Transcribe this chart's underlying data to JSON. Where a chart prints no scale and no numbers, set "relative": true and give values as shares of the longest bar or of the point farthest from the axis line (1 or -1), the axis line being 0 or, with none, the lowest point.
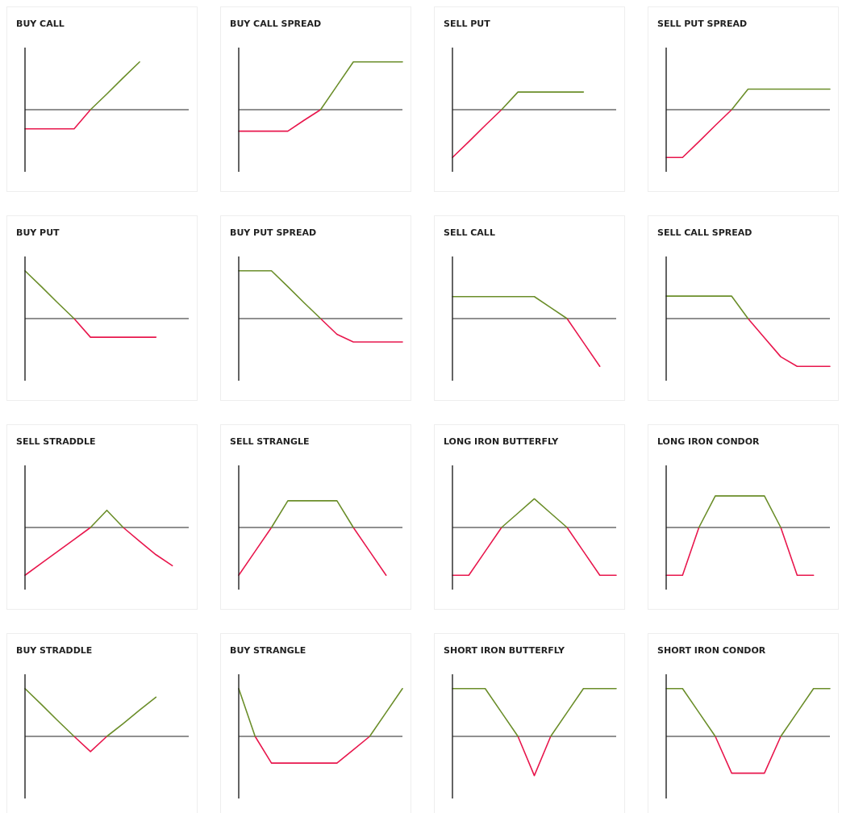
{
  "chart_data": [
    {
      "type": "line",
      "title": "BUY CALL",
      "relative": true,
      "categories": [
        null,
        null,
        null,
        null,
        null,
        null,
        null,
        null,
        null,
        null,
        null
      ],
      "series": [
        {
          "color": "#e8174d",
          "values": [
            -0.4,
            -0.4,
            -0.4,
            -0.4,
            0,
            null,
            null,
            null,
            null,
            null,
            null
          ]
        },
        {
          "color": "#6b8e2a",
          "values": [
            null,
            null,
            null,
            null,
            0,
            0.33,
            0.67,
            1,
            null,
            null,
            null
          ]
        }
      ]
    },
    {
      "type": "line",
      "title": "BUY CALL SPREAD",
      "relative": true,
      "categories": [
        null,
        null,
        null,
        null,
        null,
        null,
        null,
        null,
        null,
        null,
        null
      ],
      "series": [
        {
          "color": "#e8174d",
          "values": [
            -0.45,
            -0.45,
            -0.45,
            -0.45,
            -0.22,
            0,
            null,
            null,
            null,
            null,
            null
          ]
        },
        {
          "color": "#6b8e2a",
          "values": [
            null,
            null,
            null,
            null,
            null,
            0,
            0.5,
            1,
            1,
            1,
            1
          ]
        }
      ]
    },
    {
      "type": "line",
      "title": "SELL PUT",
      "relative": true,
      "categories": [
        null,
        null,
        null,
        null,
        null,
        null,
        null,
        null,
        null,
        null,
        null
      ],
      "series": [
        {
          "color": "#e8174d",
          "values": [
            -1,
            -0.67,
            -0.33,
            0,
            null,
            null,
            null,
            null,
            null,
            null,
            null
          ]
        },
        {
          "color": "#6b8e2a",
          "values": [
            null,
            null,
            null,
            0,
            0.37,
            0.37,
            0.37,
            0.37,
            0.37,
            null,
            null
          ]
        }
      ]
    },
    {
      "type": "line",
      "title": "SELL PUT SPREAD",
      "relative": true,
      "categories": [
        null,
        null,
        null,
        null,
        null,
        null,
        null,
        null,
        null,
        null,
        null
      ],
      "series": [
        {
          "color": "#e8174d",
          "values": [
            -1,
            -1,
            -0.67,
            -0.33,
            0,
            null,
            null,
            null,
            null,
            null,
            null
          ]
        },
        {
          "color": "#6b8e2a",
          "values": [
            null,
            null,
            null,
            null,
            0,
            0.43,
            0.43,
            0.43,
            0.43,
            0.43,
            0.43
          ]
        }
      ]
    },
    {
      "type": "line",
      "title": "BUY PUT",
      "relative": true,
      "categories": [
        null,
        null,
        null,
        null,
        null,
        null,
        null,
        null,
        null,
        null,
        null
      ],
      "series": [
        {
          "color": "#e8174d",
          "values": [
            null,
            null,
            null,
            0,
            -0.39,
            -0.39,
            -0.39,
            -0.39,
            -0.39,
            null,
            null
          ]
        },
        {
          "color": "#6b8e2a",
          "values": [
            1,
            0.67,
            0.33,
            0,
            null,
            null,
            null,
            null,
            null,
            null,
            null
          ]
        }
      ]
    },
    {
      "type": "line",
      "title": "BUY PUT SPREAD",
      "relative": true,
      "categories": [
        null,
        null,
        null,
        null,
        null,
        null,
        null,
        null,
        null,
        null,
        null
      ],
      "series": [
        {
          "color": "#e8174d",
          "values": [
            null,
            null,
            null,
            null,
            null,
            0,
            -0.33,
            -0.49,
            -0.49,
            -0.49,
            -0.49
          ]
        },
        {
          "color": "#6b8e2a",
          "values": [
            1,
            1,
            1,
            0.67,
            0.33,
            0,
            null,
            null,
            null,
            null,
            null
          ]
        }
      ]
    },
    {
      "type": "line",
      "title": "SELL CALL",
      "relative": true,
      "categories": [
        null,
        null,
        null,
        null,
        null,
        null,
        null,
        null,
        null,
        null,
        null
      ],
      "series": [
        {
          "color": "#e8174d",
          "values": [
            null,
            null,
            null,
            null,
            null,
            null,
            null,
            0,
            -0.5,
            -1,
            null
          ]
        },
        {
          "color": "#6b8e2a",
          "values": [
            0.46,
            0.46,
            0.46,
            0.46,
            0.46,
            0.46,
            0.23,
            0,
            null,
            null,
            null
          ]
        }
      ]
    },
    {
      "type": "line",
      "title": "SELL CALL SPREAD",
      "relative": true,
      "categories": [
        null,
        null,
        null,
        null,
        null,
        null,
        null,
        null,
        null,
        null,
        null
      ],
      "series": [
        {
          "color": "#e8174d",
          "values": [
            null,
            null,
            null,
            null,
            null,
            0,
            -0.4,
            -0.8,
            -1,
            -1,
            -1
          ]
        },
        {
          "color": "#6b8e2a",
          "values": [
            0.47,
            0.47,
            0.47,
            0.47,
            0.47,
            0,
            null,
            null,
            null,
            null,
            null
          ]
        }
      ]
    },
    {
      "type": "line",
      "title": "SELL STRADDLE",
      "relative": true,
      "categories": [
        null,
        null,
        null,
        null,
        null,
        null,
        null,
        null,
        null,
        null,
        null
      ],
      "series": [
        {
          "color": "#e8174d",
          "values": [
            -1,
            -0.75,
            -0.5,
            -0.25,
            0,
            null,
            0,
            -0.29,
            -0.57,
            -0.8,
            null
          ]
        },
        {
          "color": "#6b8e2a",
          "values": [
            null,
            null,
            null,
            null,
            0,
            0.36,
            0,
            null,
            null,
            null,
            null
          ]
        }
      ]
    },
    {
      "type": "line",
      "title": "SELL STRANGLE",
      "relative": true,
      "categories": [
        null,
        null,
        null,
        null,
        null,
        null,
        null,
        null,
        null,
        null,
        null
      ],
      "series": [
        {
          "color": "#e8174d",
          "values": [
            -1,
            -0.5,
            0,
            null,
            null,
            null,
            null,
            0,
            -0.5,
            -1,
            null
          ]
        },
        {
          "color": "#6b8e2a",
          "values": [
            null,
            null,
            0,
            0.56,
            0.56,
            0.56,
            0.56,
            0,
            null,
            null,
            null
          ]
        }
      ]
    },
    {
      "type": "line",
      "title": "LONG IRON BUTTERFLY",
      "relative": true,
      "categories": [
        null,
        null,
        null,
        null,
        null,
        null,
        null,
        null,
        null,
        null,
        null
      ],
      "series": [
        {
          "color": "#e8174d",
          "values": [
            -1,
            -1,
            -0.5,
            0,
            null,
            null,
            null,
            0,
            -0.5,
            -1,
            -1
          ]
        },
        {
          "color": "#6b8e2a",
          "values": [
            null,
            null,
            null,
            0,
            0.3,
            0.6,
            0.3,
            0,
            null,
            null,
            null
          ]
        }
      ]
    },
    {
      "type": "line",
      "title": "LONG IRON CONDOR",
      "relative": true,
      "categories": [
        null,
        null,
        null,
        null,
        null,
        null,
        null,
        null,
        null,
        null,
        null
      ],
      "series": [
        {
          "color": "#e8174d",
          "values": [
            -1,
            -1,
            0,
            null,
            null,
            null,
            null,
            0,
            -1,
            -1,
            null
          ]
        },
        {
          "color": "#6b8e2a",
          "values": [
            null,
            null,
            0,
            0.66,
            0.66,
            0.66,
            0.66,
            0,
            null,
            null,
            null
          ]
        }
      ]
    },
    {
      "type": "line",
      "title": "BUY STRADDLE",
      "relative": true,
      "categories": [
        null,
        null,
        null,
        null,
        null,
        null,
        null,
        null,
        null,
        null,
        null
      ],
      "series": [
        {
          "color": "#e8174d",
          "values": [
            null,
            null,
            null,
            0,
            -0.32,
            0,
            null,
            null,
            null,
            null,
            null
          ]
        },
        {
          "color": "#6b8e2a",
          "values": [
            1,
            0.67,
            0.33,
            0,
            null,
            0,
            0.27,
            0.55,
            0.82,
            null,
            null
          ]
        }
      ]
    },
    {
      "type": "line",
      "title": "BUY STRANGLE",
      "relative": true,
      "categories": [
        null,
        null,
        null,
        null,
        null,
        null,
        null,
        null,
        null,
        null,
        null
      ],
      "series": [
        {
          "color": "#e8174d",
          "values": [
            null,
            0,
            -0.56,
            -0.56,
            -0.56,
            -0.56,
            -0.56,
            -0.28,
            0,
            null,
            null
          ]
        },
        {
          "color": "#6b8e2a",
          "values": [
            1,
            0,
            null,
            null,
            null,
            null,
            null,
            null,
            0,
            0.5,
            1
          ]
        }
      ]
    },
    {
      "type": "line",
      "title": "SHORT IRON BUTTERFLY",
      "relative": true,
      "categories": [
        null,
        null,
        null,
        null,
        null,
        null,
        null,
        null,
        null,
        null,
        null
      ],
      "series": [
        {
          "color": "#e8174d",
          "values": [
            null,
            null,
            null,
            null,
            0,
            -0.82,
            0,
            null,
            null,
            null,
            null
          ]
        },
        {
          "color": "#6b8e2a",
          "values": [
            1,
            1,
            1,
            0.5,
            0,
            null,
            0,
            0.5,
            1,
            1,
            1
          ]
        }
      ]
    },
    {
      "type": "line",
      "title": "SHORT IRON CONDOR",
      "relative": true,
      "categories": [
        null,
        null,
        null,
        null,
        null,
        null,
        null,
        null,
        null,
        null,
        null
      ],
      "series": [
        {
          "color": "#e8174d",
          "values": [
            null,
            null,
            null,
            0,
            -0.77,
            -0.77,
            -0.77,
            0,
            null,
            null,
            null
          ]
        },
        {
          "color": "#6b8e2a",
          "values": [
            1,
            1,
            0.5,
            0,
            null,
            null,
            null,
            0,
            0.5,
            1,
            1
          ]
        }
      ]
    }
  ]
}
